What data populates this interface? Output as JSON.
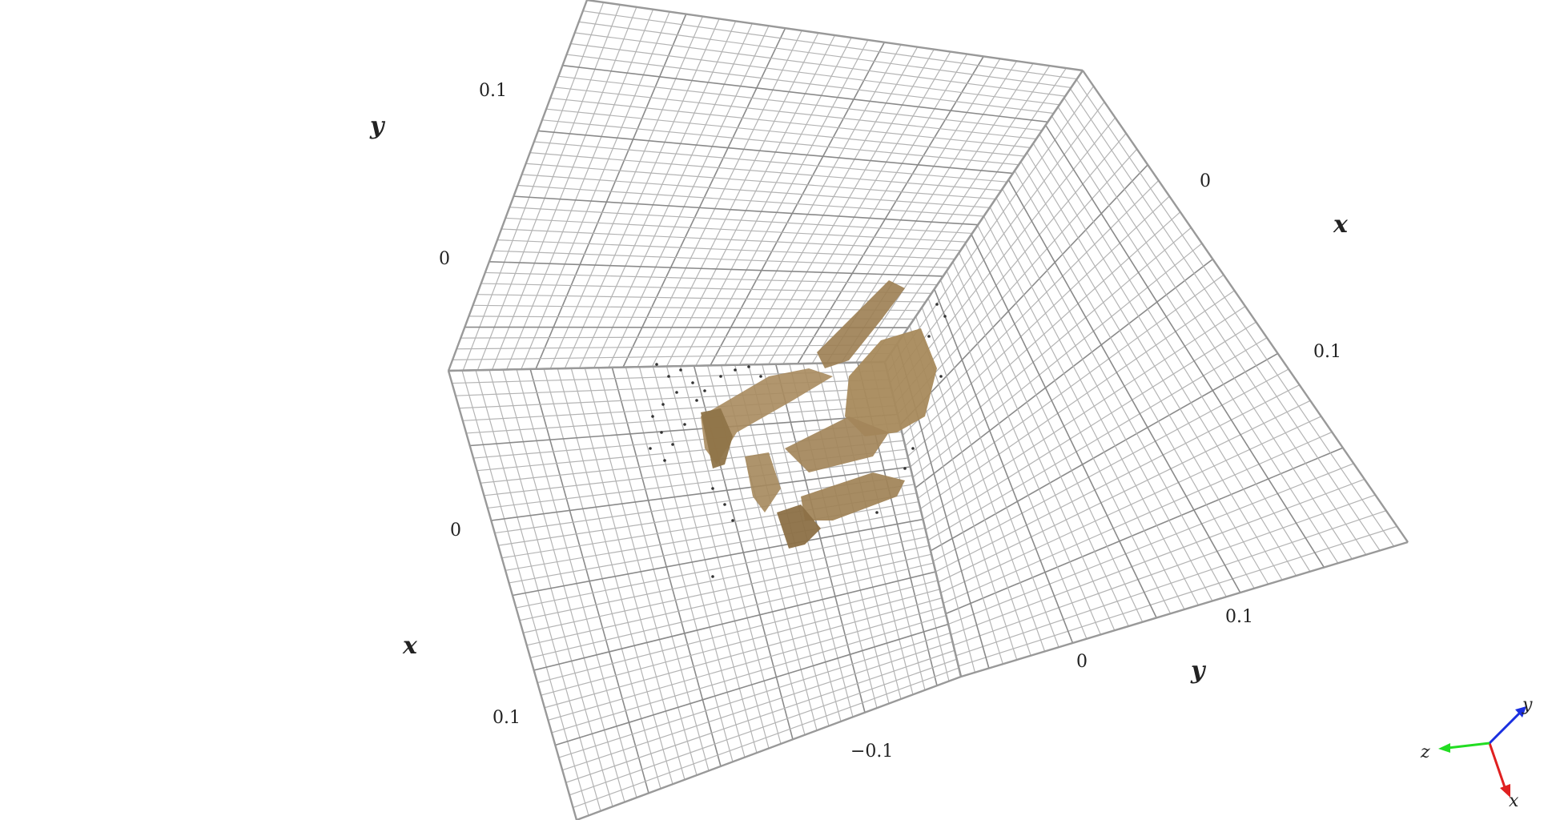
{
  "scene": {
    "background": "#ffffff",
    "grid_color": "#b4b4b4",
    "grid_major_color": "#8a8a8a",
    "pointcloud_color": "#a88a5c"
  },
  "panels": {
    "upper_wall_axis": "y",
    "upper_wall_ticks": [
      "0.1",
      "0"
    ],
    "right_wall_axis": "x",
    "right_wall_ticks": [
      "0",
      "0.1"
    ],
    "floor_axis_left": "x",
    "floor_axis_left_ticks": [
      "0",
      "0.1"
    ],
    "floor_axis_bottom": "y",
    "floor_axis_bottom_ticks": [
      "−0.1",
      "0",
      "0.1"
    ]
  },
  "gizmo": {
    "x_label": "x",
    "y_label": "y",
    "z_label": "z",
    "x_color": "#e02020",
    "y_color": "#1a2fe0",
    "z_color": "#22dd22"
  }
}
